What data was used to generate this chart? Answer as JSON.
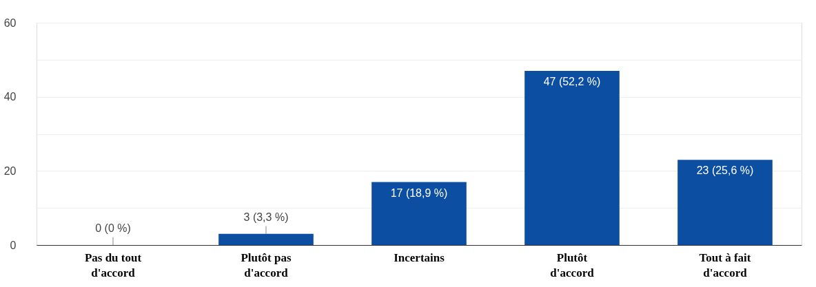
{
  "chart_data": {
    "type": "bar",
    "categories": [
      "Pas du tout\nd'accord",
      "Plutôt pas\nd'accord",
      "Incertains",
      "Plutôt\nd'accord",
      "Tout à fait\nd'accord"
    ],
    "values": [
      0,
      3,
      17,
      47,
      23
    ],
    "value_labels": [
      "0 (0 %)",
      "3 (3,3 %)",
      "17 (18,9 %)",
      "47 (52,2 %)",
      "23 (25,6 %)"
    ],
    "color": "#0b4ea2",
    "ylim": [
      0,
      60
    ],
    "yticks": [
      0,
      {
        "value": 10,
        "label": null
      },
      20,
      {
        "value": 30,
        "label": null
      },
      40,
      {
        "value": 50,
        "label": null
      },
      60
    ],
    "grid": "y"
  }
}
